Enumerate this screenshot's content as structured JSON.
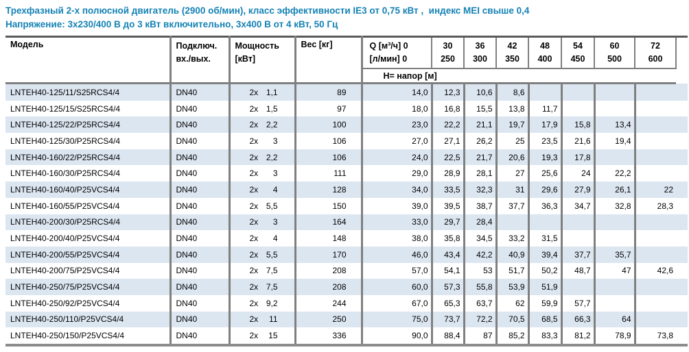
{
  "title": {
    "line1": "Трехфазный 2-х полюсной двигатель (2900 об/мин), класс эффективности IE3 от 0,75 кВт ,  индекс MEI свыше 0,4",
    "line2": "Напряжение: 3x230/400 В до 3 кВт включительно, 3x400 В от 4 кВт, 50 Гц"
  },
  "colors": {
    "accent": "#1482b4",
    "stripe": "#dce6f1",
    "divider": "#7f7f7f",
    "table_top_border": "#58595b",
    "table_bottom_border": "#8c8c8c"
  },
  "table": {
    "columns": {
      "model": "Модель",
      "connection_line1": "Подключ.",
      "connection_line2": "вх./вых.",
      "power_line1": "Мощность",
      "power_line2": "[кВт]",
      "weight": "Вес [кг]",
      "q_line1": "Q [м³/ч] 0",
      "q_line2": "[л/мин] 0",
      "flow_columns": [
        {
          "m3h": "30",
          "lmin": "250"
        },
        {
          "m3h": "36",
          "lmin": "300"
        },
        {
          "m3h": "42",
          "lmin": "350"
        },
        {
          "m3h": "48",
          "lmin": "400"
        },
        {
          "m3h": "54",
          "lmin": "450"
        },
        {
          "m3h": "60",
          "lmin": "500"
        },
        {
          "m3h": "72",
          "lmin": "600"
        }
      ],
      "head_row_label": "H= напор [м]"
    },
    "rows": [
      {
        "model": "LNTEH40-125/11/S25RCS4/4",
        "connection": "DN40",
        "power_prefix": "2x",
        "power": "1,1",
        "weight": "89",
        "q0": "14,0",
        "values": [
          "12,3",
          "10,6",
          "8,6",
          "",
          "",
          "",
          ""
        ]
      },
      {
        "model": "LNTEH40-125/15/S25RCS4/4",
        "connection": "DN40",
        "power_prefix": "2x",
        "power": "1,5",
        "weight": "97",
        "q0": "18,0",
        "values": [
          "16,8",
          "15,5",
          "13,8",
          "11,7",
          "",
          "",
          ""
        ]
      },
      {
        "model": "LNTEH40-125/22/P25RCS4/4",
        "connection": "DN40",
        "power_prefix": "2x",
        "power": "2,2",
        "weight": "100",
        "q0": "23,0",
        "values": [
          "22,2",
          "21,1",
          "19,7",
          "17,9",
          "15,8",
          "13,4",
          ""
        ]
      },
      {
        "model": "LNTEH40-125/30/P25RCS4/4",
        "connection": "DN40",
        "power_prefix": "2x",
        "power": "3",
        "weight": "106",
        "q0": "27,0",
        "values": [
          "27,1",
          "26,2",
          "25",
          "23,5",
          "21,6",
          "19,4",
          ""
        ]
      },
      {
        "model": "LNTEH40-160/22/P25RCS4/4",
        "connection": "DN40",
        "power_prefix": "2x",
        "power": "2,2",
        "weight": "106",
        "q0": "24,0",
        "values": [
          "22,5",
          "21,7",
          "20,6",
          "19,3",
          "17,8",
          "",
          ""
        ]
      },
      {
        "model": "LNTEH40-160/30/P25RCS4/4",
        "connection": "DN40",
        "power_prefix": "2x",
        "power": "3",
        "weight": "111",
        "q0": "29,0",
        "values": [
          "28,9",
          "28,1",
          "27",
          "25,6",
          "24",
          "22,2",
          ""
        ]
      },
      {
        "model": "LNTEH40-160/40/P25VCS4/4",
        "connection": "DN40",
        "power_prefix": "2x",
        "power": "4",
        "weight": "128",
        "q0": "34,0",
        "values": [
          "33,5",
          "32,3",
          "31",
          "29,6",
          "27,9",
          "26,1",
          "22"
        ]
      },
      {
        "model": "LNTEH40-160/55/P25VCS4/4",
        "connection": "DN40",
        "power_prefix": "2x",
        "power": "5,5",
        "weight": "150",
        "q0": "39,0",
        "values": [
          "39,5",
          "38,7",
          "37,7",
          "36,3",
          "34,7",
          "32,8",
          "28,3"
        ]
      },
      {
        "model": "LNTEH40-200/30/P25RCS4/4",
        "connection": "DN40",
        "power_prefix": "2x",
        "power": "3",
        "weight": "164",
        "q0": "33,0",
        "values": [
          "29,7",
          "28,4",
          "",
          "",
          "",
          "",
          ""
        ]
      },
      {
        "model": "LNTEH40-200/40/P25VCS4/4",
        "connection": "DN40",
        "power_prefix": "2x",
        "power": "4",
        "weight": "148",
        "q0": "38,0",
        "values": [
          "35,8",
          "34,5",
          "33,2",
          "31,5",
          "",
          "",
          ""
        ]
      },
      {
        "model": "LNTEH40-200/55/P25VCS4/4",
        "connection": "DN40",
        "power_prefix": "2x",
        "power": "5,5",
        "weight": "170",
        "q0": "46,0",
        "values": [
          "43,4",
          "42,2",
          "40,9",
          "39,4",
          "37,7",
          "35,7",
          ""
        ]
      },
      {
        "model": "LNTEH40-200/75/P25VCS4/4",
        "connection": "DN40",
        "power_prefix": "2x",
        "power": "7,5",
        "weight": "208",
        "q0": "57,0",
        "values": [
          "54,1",
          "53",
          "51,7",
          "50,2",
          "48,7",
          "47",
          "42,6"
        ]
      },
      {
        "model": "LNTEH40-250/75/P25VCS4/4",
        "connection": "DN40",
        "power_prefix": "2x",
        "power": "7,5",
        "weight": "208",
        "q0": "60,0",
        "values": [
          "57,3",
          "55,8",
          "53,9",
          "51,9",
          "",
          "",
          ""
        ]
      },
      {
        "model": "LNTEH40-250/92/P25VCS4/4",
        "connection": "DN40",
        "power_prefix": "2x",
        "power": "9,2",
        "weight": "244",
        "q0": "67,0",
        "values": [
          "65,3",
          "63,7",
          "62",
          "59,9",
          "57,7",
          "",
          ""
        ]
      },
      {
        "model": "LNTEH40-250/110/P25VCS4/4",
        "connection": "DN40",
        "power_prefix": "2x",
        "power": "11",
        "weight": "250",
        "q0": "75,0",
        "values": [
          "73,7",
          "72,2",
          "70,5",
          "68,5",
          "66,3",
          "64",
          ""
        ]
      },
      {
        "model": "LNTEH40-250/150/P25VCS4/4",
        "connection": "DN40",
        "power_prefix": "2x",
        "power": "15",
        "weight": "336",
        "q0": "90,0",
        "values": [
          "88,4",
          "87",
          "85,2",
          "83,3",
          "81,2",
          "78,9",
          "73,8"
        ]
      }
    ]
  }
}
